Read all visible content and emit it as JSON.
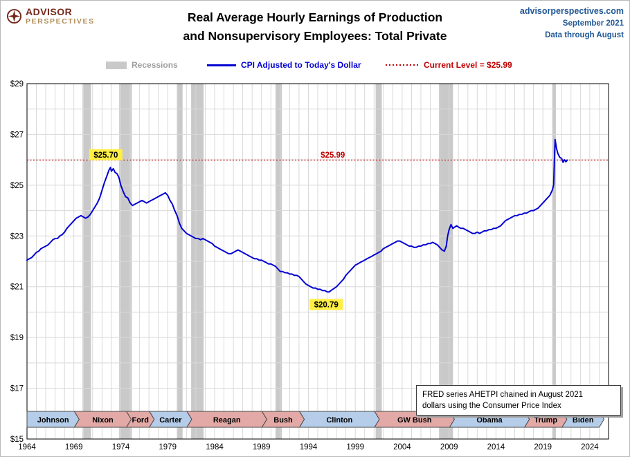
{
  "header": {
    "logo_line1": "ADVISOR",
    "logo_line2": "PERSPECTIVES",
    "title_line1": "Real Average Hourly Earnings of Production",
    "title_line2": "and Nonsupervisory Employees: Total Private",
    "source_site": "advisorperspectives.com",
    "source_date": "September 2021",
    "source_note": "Data through August"
  },
  "legend": {
    "items": [
      {
        "label": "Recessions",
        "swatch": "band",
        "color": "#c9c9c9",
        "text_color": "#9e9e9e"
      },
      {
        "label": "CPI Adjusted to Today's Dollar",
        "swatch": "line",
        "color": "#0000d2",
        "text_color": "#0000d2"
      },
      {
        "label": "Current Level = $25.99",
        "swatch": "dotted",
        "color": "#c00000",
        "text_color": "#c00000"
      }
    ]
  },
  "note_box": {
    "line1": "FRED series AHETPI chained in August 2021",
    "line2": "dollars using the Consumer Price Index"
  },
  "colors": {
    "series": "#0000d2",
    "current": "#c00000",
    "recession": "#c9c9c9",
    "gridline": "#d9d9d9",
    "highlight": "#ffee44",
    "dem": "#b5cde8",
    "rep": "#e2a9a6",
    "banner_border": "#4a4a4a"
  },
  "chart_data": {
    "type": "line",
    "title": "Real Average Hourly Earnings of Production and Nonsupervisory Employees: Total Private",
    "xlabel": "",
    "ylabel": "",
    "x_domain": [
      1964,
      2026
    ],
    "y_domain": [
      15,
      29
    ],
    "x_ticks": [
      1964,
      1969,
      1974,
      1979,
      1984,
      1989,
      1994,
      1999,
      2004,
      2009,
      2014,
      2019,
      2024
    ],
    "y_ticks": [
      15,
      17,
      19,
      21,
      23,
      25,
      27,
      29
    ],
    "grid": "on",
    "legend_position": "top",
    "current_level": 25.99,
    "annotations": [
      {
        "text": "$25.70",
        "x": 1972.4,
        "y": 26.2,
        "style": "highlight"
      },
      {
        "text": "$20.79",
        "x": 1995.9,
        "y": 20.3,
        "style": "highlight"
      },
      {
        "text": "$25.99",
        "x": 1996.6,
        "y": 26.2,
        "style": "current"
      }
    ],
    "recessions": [
      [
        1969.92,
        1970.83
      ],
      [
        1973.83,
        1975.17
      ],
      [
        1980.0,
        1980.58
      ],
      [
        1981.5,
        1982.83
      ],
      [
        1990.5,
        1991.17
      ],
      [
        2001.17,
        2001.83
      ],
      [
        2007.92,
        2009.42
      ],
      [
        2020.05,
        2020.38
      ]
    ],
    "presidents": [
      {
        "name": "Johnson",
        "party": "D",
        "start": 1964.0,
        "end": 1969.05
      },
      {
        "name": "Nixon",
        "party": "R",
        "start": 1969.05,
        "end": 1974.6
      },
      {
        "name": "Ford",
        "party": "R",
        "start": 1974.6,
        "end": 1977.05
      },
      {
        "name": "Carter",
        "party": "D",
        "start": 1977.05,
        "end": 1981.05
      },
      {
        "name": "Reagan",
        "party": "R",
        "start": 1981.05,
        "end": 1989.05
      },
      {
        "name": "Bush",
        "party": "R",
        "start": 1989.05,
        "end": 1993.05
      },
      {
        "name": "Clinton",
        "party": "D",
        "start": 1993.05,
        "end": 2001.05
      },
      {
        "name": "GW Bush",
        "party": "R",
        "start": 2001.05,
        "end": 2009.05
      },
      {
        "name": "Obama",
        "party": "D",
        "start": 2009.05,
        "end": 2017.05
      },
      {
        "name": "Trump",
        "party": "R",
        "start": 2017.05,
        "end": 2021.05
      },
      {
        "name": "Biden",
        "party": "D",
        "start": 2021.05,
        "end": 2025.0
      }
    ],
    "series": [
      {
        "name": "CPI Adjusted to Today's Dollar",
        "color": "#0000d2",
        "points": [
          [
            1964.0,
            22.05
          ],
          [
            1964.25,
            22.1
          ],
          [
            1964.5,
            22.15
          ],
          [
            1964.75,
            22.25
          ],
          [
            1965.0,
            22.35
          ],
          [
            1965.25,
            22.4
          ],
          [
            1965.5,
            22.5
          ],
          [
            1965.75,
            22.55
          ],
          [
            1966.0,
            22.6
          ],
          [
            1966.25,
            22.65
          ],
          [
            1966.5,
            22.75
          ],
          [
            1966.75,
            22.85
          ],
          [
            1967.0,
            22.9
          ],
          [
            1967.25,
            22.9
          ],
          [
            1967.5,
            23.0
          ],
          [
            1967.75,
            23.05
          ],
          [
            1968.0,
            23.15
          ],
          [
            1968.25,
            23.3
          ],
          [
            1968.5,
            23.4
          ],
          [
            1968.75,
            23.5
          ],
          [
            1969.0,
            23.6
          ],
          [
            1969.25,
            23.7
          ],
          [
            1969.5,
            23.75
          ],
          [
            1969.75,
            23.8
          ],
          [
            1970.0,
            23.75
          ],
          [
            1970.25,
            23.7
          ],
          [
            1970.5,
            23.75
          ],
          [
            1970.75,
            23.85
          ],
          [
            1971.0,
            24.0
          ],
          [
            1971.25,
            24.15
          ],
          [
            1971.5,
            24.3
          ],
          [
            1971.75,
            24.5
          ],
          [
            1972.0,
            24.8
          ],
          [
            1972.25,
            25.1
          ],
          [
            1972.5,
            25.35
          ],
          [
            1972.75,
            25.6
          ],
          [
            1972.9,
            25.7
          ],
          [
            1973.0,
            25.55
          ],
          [
            1973.2,
            25.65
          ],
          [
            1973.4,
            25.5
          ],
          [
            1973.6,
            25.45
          ],
          [
            1973.8,
            25.3
          ],
          [
            1974.0,
            25.0
          ],
          [
            1974.25,
            24.75
          ],
          [
            1974.5,
            24.55
          ],
          [
            1974.75,
            24.5
          ],
          [
            1975.0,
            24.3
          ],
          [
            1975.25,
            24.2
          ],
          [
            1975.5,
            24.25
          ],
          [
            1975.75,
            24.3
          ],
          [
            1976.0,
            24.35
          ],
          [
            1976.25,
            24.4
          ],
          [
            1976.5,
            24.35
          ],
          [
            1976.75,
            24.3
          ],
          [
            1977.0,
            24.35
          ],
          [
            1977.25,
            24.4
          ],
          [
            1977.5,
            24.45
          ],
          [
            1977.75,
            24.5
          ],
          [
            1978.0,
            24.55
          ],
          [
            1978.25,
            24.6
          ],
          [
            1978.5,
            24.65
          ],
          [
            1978.75,
            24.7
          ],
          [
            1979.0,
            24.6
          ],
          [
            1979.25,
            24.4
          ],
          [
            1979.5,
            24.25
          ],
          [
            1979.75,
            24.0
          ],
          [
            1980.0,
            23.8
          ],
          [
            1980.25,
            23.5
          ],
          [
            1980.5,
            23.3
          ],
          [
            1980.75,
            23.2
          ],
          [
            1981.0,
            23.1
          ],
          [
            1981.25,
            23.05
          ],
          [
            1981.5,
            23.0
          ],
          [
            1981.75,
            22.95
          ],
          [
            1982.0,
            22.9
          ],
          [
            1982.25,
            22.9
          ],
          [
            1982.5,
            22.85
          ],
          [
            1982.75,
            22.9
          ],
          [
            1983.0,
            22.85
          ],
          [
            1983.25,
            22.8
          ],
          [
            1983.5,
            22.75
          ],
          [
            1983.75,
            22.7
          ],
          [
            1984.0,
            22.6
          ],
          [
            1984.25,
            22.55
          ],
          [
            1984.5,
            22.5
          ],
          [
            1984.75,
            22.45
          ],
          [
            1985.0,
            22.4
          ],
          [
            1985.25,
            22.35
          ],
          [
            1985.5,
            22.3
          ],
          [
            1985.75,
            22.3
          ],
          [
            1986.0,
            22.35
          ],
          [
            1986.25,
            22.4
          ],
          [
            1986.5,
            22.45
          ],
          [
            1986.75,
            22.4
          ],
          [
            1987.0,
            22.35
          ],
          [
            1987.25,
            22.3
          ],
          [
            1987.5,
            22.25
          ],
          [
            1987.75,
            22.2
          ],
          [
            1988.0,
            22.15
          ],
          [
            1988.25,
            22.1
          ],
          [
            1988.5,
            22.1
          ],
          [
            1988.75,
            22.05
          ],
          [
            1989.0,
            22.05
          ],
          [
            1989.25,
            22.0
          ],
          [
            1989.5,
            21.95
          ],
          [
            1989.75,
            21.9
          ],
          [
            1990.0,
            21.9
          ],
          [
            1990.25,
            21.85
          ],
          [
            1990.5,
            21.8
          ],
          [
            1990.75,
            21.7
          ],
          [
            1991.0,
            21.6
          ],
          [
            1991.25,
            21.6
          ],
          [
            1991.5,
            21.55
          ],
          [
            1991.75,
            21.55
          ],
          [
            1992.0,
            21.5
          ],
          [
            1992.25,
            21.5
          ],
          [
            1992.5,
            21.45
          ],
          [
            1992.75,
            21.45
          ],
          [
            1993.0,
            21.4
          ],
          [
            1993.25,
            21.3
          ],
          [
            1993.5,
            21.2
          ],
          [
            1993.75,
            21.1
          ],
          [
            1994.0,
            21.05
          ],
          [
            1994.25,
            21.0
          ],
          [
            1994.5,
            20.95
          ],
          [
            1994.75,
            20.95
          ],
          [
            1995.0,
            20.9
          ],
          [
            1995.25,
            20.9
          ],
          [
            1995.5,
            20.85
          ],
          [
            1995.75,
            20.85
          ],
          [
            1996.0,
            20.8
          ],
          [
            1996.2,
            20.79
          ],
          [
            1996.4,
            20.85
          ],
          [
            1996.6,
            20.9
          ],
          [
            1996.8,
            20.95
          ],
          [
            1997.0,
            21.0
          ],
          [
            1997.25,
            21.1
          ],
          [
            1997.5,
            21.2
          ],
          [
            1997.75,
            21.3
          ],
          [
            1998.0,
            21.45
          ],
          [
            1998.25,
            21.55
          ],
          [
            1998.5,
            21.65
          ],
          [
            1998.75,
            21.75
          ],
          [
            1999.0,
            21.85
          ],
          [
            1999.25,
            21.9
          ],
          [
            1999.5,
            21.95
          ],
          [
            1999.75,
            22.0
          ],
          [
            2000.0,
            22.05
          ],
          [
            2000.25,
            22.1
          ],
          [
            2000.5,
            22.15
          ],
          [
            2000.75,
            22.2
          ],
          [
            2001.0,
            22.25
          ],
          [
            2001.25,
            22.3
          ],
          [
            2001.5,
            22.35
          ],
          [
            2001.75,
            22.4
          ],
          [
            2002.0,
            22.5
          ],
          [
            2002.25,
            22.55
          ],
          [
            2002.5,
            22.6
          ],
          [
            2002.75,
            22.65
          ],
          [
            2003.0,
            22.7
          ],
          [
            2003.25,
            22.75
          ],
          [
            2003.5,
            22.8
          ],
          [
            2003.75,
            22.8
          ],
          [
            2004.0,
            22.75
          ],
          [
            2004.25,
            22.7
          ],
          [
            2004.5,
            22.65
          ],
          [
            2004.75,
            22.6
          ],
          [
            2005.0,
            22.6
          ],
          [
            2005.25,
            22.55
          ],
          [
            2005.5,
            22.55
          ],
          [
            2005.75,
            22.6
          ],
          [
            2006.0,
            22.6
          ],
          [
            2006.25,
            22.65
          ],
          [
            2006.5,
            22.65
          ],
          [
            2006.75,
            22.7
          ],
          [
            2007.0,
            22.7
          ],
          [
            2007.25,
            22.75
          ],
          [
            2007.5,
            22.7
          ],
          [
            2007.75,
            22.65
          ],
          [
            2008.0,
            22.55
          ],
          [
            2008.25,
            22.45
          ],
          [
            2008.5,
            22.4
          ],
          [
            2008.7,
            22.6
          ],
          [
            2008.85,
            23.0
          ],
          [
            2009.0,
            23.25
          ],
          [
            2009.2,
            23.45
          ],
          [
            2009.4,
            23.3
          ],
          [
            2009.6,
            23.35
          ],
          [
            2009.8,
            23.4
          ],
          [
            2010.0,
            23.35
          ],
          [
            2010.25,
            23.3
          ],
          [
            2010.5,
            23.3
          ],
          [
            2010.75,
            23.25
          ],
          [
            2011.0,
            23.2
          ],
          [
            2011.25,
            23.15
          ],
          [
            2011.5,
            23.1
          ],
          [
            2011.75,
            23.1
          ],
          [
            2012.0,
            23.15
          ],
          [
            2012.25,
            23.1
          ],
          [
            2012.5,
            23.15
          ],
          [
            2012.75,
            23.2
          ],
          [
            2013.0,
            23.2
          ],
          [
            2013.25,
            23.25
          ],
          [
            2013.5,
            23.25
          ],
          [
            2013.75,
            23.3
          ],
          [
            2014.0,
            23.3
          ],
          [
            2014.25,
            23.35
          ],
          [
            2014.5,
            23.4
          ],
          [
            2014.75,
            23.5
          ],
          [
            2015.0,
            23.6
          ],
          [
            2015.25,
            23.65
          ],
          [
            2015.5,
            23.7
          ],
          [
            2015.75,
            23.75
          ],
          [
            2016.0,
            23.8
          ],
          [
            2016.25,
            23.8
          ],
          [
            2016.5,
            23.85
          ],
          [
            2016.75,
            23.85
          ],
          [
            2017.0,
            23.9
          ],
          [
            2017.25,
            23.9
          ],
          [
            2017.5,
            23.95
          ],
          [
            2017.75,
            24.0
          ],
          [
            2018.0,
            24.0
          ],
          [
            2018.25,
            24.05
          ],
          [
            2018.5,
            24.1
          ],
          [
            2018.75,
            24.2
          ],
          [
            2019.0,
            24.3
          ],
          [
            2019.25,
            24.4
          ],
          [
            2019.5,
            24.5
          ],
          [
            2019.75,
            24.6
          ],
          [
            2020.0,
            24.8
          ],
          [
            2020.15,
            25.0
          ],
          [
            2020.3,
            26.8
          ],
          [
            2020.45,
            26.45
          ],
          [
            2020.6,
            26.25
          ],
          [
            2020.8,
            26.1
          ],
          [
            2021.0,
            26.05
          ],
          [
            2021.15,
            25.9
          ],
          [
            2021.3,
            26.0
          ],
          [
            2021.45,
            25.92
          ],
          [
            2021.6,
            25.99
          ]
        ]
      }
    ]
  }
}
